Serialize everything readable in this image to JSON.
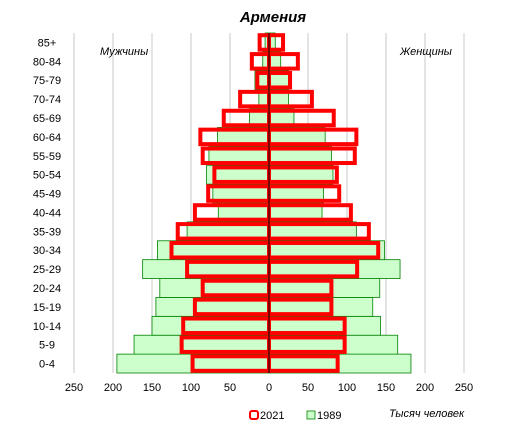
{
  "chart_data": {
    "type": "bar",
    "orientation": "horizontal-pyramid",
    "title": "Армения",
    "left_label": "Мужчины",
    "right_label": "Женщины",
    "unit_label": "Тысяч человек",
    "categories": [
      "0-4",
      "5-9",
      "10-14",
      "15-19",
      "20-24",
      "25-29",
      "30-34",
      "35-39",
      "40-44",
      "45-49",
      "50-54",
      "55-59",
      "60-64",
      "65-69",
      "70-74",
      "75-79",
      "80-84",
      "85+"
    ],
    "x_ticks": [
      "250",
      "200",
      "150",
      "100",
      "50",
      "0",
      "50",
      "100",
      "150",
      "200",
      "250"
    ],
    "xlim": [
      -250,
      250
    ],
    "grid": true,
    "legend_position": "bottom",
    "series": [
      {
        "name": "2021",
        "color": "#ff0000",
        "style": "outline",
        "male": [
          98,
          112,
          110,
          95,
          85,
          105,
          125,
          117,
          95,
          78,
          70,
          85,
          88,
          58,
          37,
          15,
          22,
          12
        ],
        "female": [
          88,
          97,
          97,
          80,
          80,
          113,
          140,
          128,
          105,
          90,
          87,
          110,
          112,
          83,
          55,
          27,
          37,
          18
        ]
      },
      {
        "name": "1989",
        "color": "#ccffcc",
        "style": "fill",
        "male": [
          195,
          173,
          150,
          145,
          140,
          162,
          143,
          105,
          65,
          72,
          80,
          77,
          66,
          25,
          13,
          18,
          8,
          5
        ],
        "female": [
          182,
          165,
          143,
          133,
          142,
          168,
          148,
          112,
          68,
          70,
          82,
          80,
          72,
          32,
          25,
          25,
          15,
          8
        ]
      }
    ]
  }
}
